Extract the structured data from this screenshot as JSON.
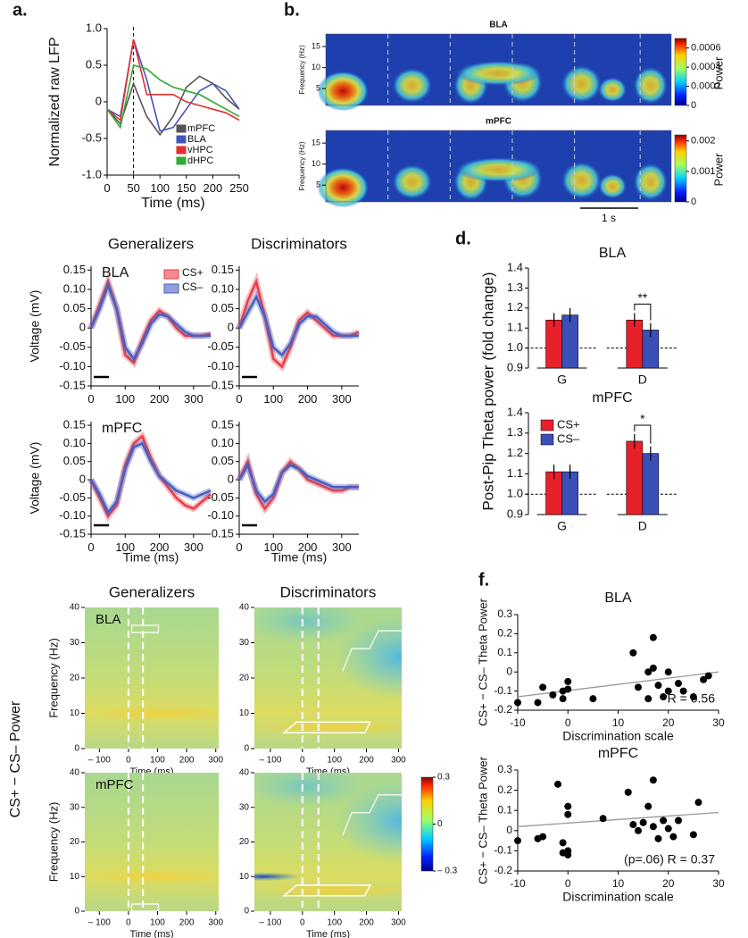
{
  "chart_data": [
    {
      "type": "line",
      "panel": "a.",
      "xlabel": "Time (ms)",
      "ylabel": "Normalized  raw LFP",
      "xlim": [
        0,
        250
      ],
      "xticks": [
        0,
        50,
        100,
        150,
        200,
        250
      ],
      "ylim": [
        -1,
        1
      ],
      "yticks": [
        {
          "value": -1,
          "label": "-1.0"
        },
        -0.5,
        0,
        0.5,
        {
          "value": 1,
          "label": "1.0"
        }
      ],
      "vline": 50,
      "legend": "lower right",
      "x": [
        0,
        25,
        50,
        75,
        100,
        125,
        150,
        175,
        200,
        225,
        250
      ],
      "series": [
        {
          "name": "mPFC",
          "color": "#555555",
          "values": [
            -0.1,
            -0.3,
            0.25,
            -0.2,
            -0.45,
            -0.2,
            0.2,
            0.35,
            0.25,
            0.05,
            -0.1
          ]
        },
        {
          "name": "BLA",
          "color": "#4455bb",
          "values": [
            -0.1,
            -0.2,
            0.85,
            0.3,
            -0.4,
            -0.35,
            -0.1,
            0.15,
            0.25,
            0.15,
            -0.1
          ]
        },
        {
          "name": "vHPC",
          "color": "#e03030",
          "values": [
            -0.1,
            -0.25,
            0.85,
            0.1,
            0.1,
            0.1,
            0,
            -0.05,
            -0.1,
            -0.15,
            -0.25
          ]
        },
        {
          "name": "dHPC",
          "color": "#33aa33",
          "values": [
            -0.1,
            -0.35,
            0.5,
            0.45,
            0.3,
            0.2,
            0.15,
            0.1,
            0,
            -0.1,
            -0.2
          ]
        }
      ]
    },
    {
      "type": "spectrogram",
      "panel": "b.",
      "title": "BLA",
      "ylabel": "Frequency (Hz)",
      "ylim": [
        1,
        18
      ],
      "yticks": [
        5,
        10,
        15
      ],
      "clim": [
        0,
        0.0007
      ],
      "cticks": [
        0,
        0.0002,
        0.0004,
        0.0006
      ],
      "colorbar_label": "Power"
    },
    {
      "type": "spectrogram",
      "title": "mPFC",
      "ylabel": "Frequency (Hz)",
      "ylim": [
        1,
        18
      ],
      "yticks": [
        5,
        10,
        15
      ],
      "clim": [
        0,
        0.0022
      ],
      "cticks": [
        0,
        0.001,
        0.002
      ],
      "colorbar_label": "Power",
      "scalebar_label": "1 s"
    },
    {
      "type": "line",
      "title": "Generalizers",
      "label": "BLA",
      "ylabel": "Voltage (mV)",
      "legend": "upper right",
      "xlim": [
        0,
        350
      ],
      "xticks": [
        0,
        100,
        200,
        300
      ],
      "ylim": [
        -0.15,
        0.16
      ],
      "yticks": [
        0.15,
        {
          "value": 0.1,
          "label": "0.10"
        },
        0.05,
        0,
        -0.05,
        {
          "value": -0.1,
          "label": "-0.10"
        },
        -0.15
      ],
      "x": [
        0,
        25,
        50,
        75,
        100,
        125,
        150,
        175,
        200,
        225,
        250,
        275,
        300,
        325,
        350
      ],
      "series": [
        {
          "name": "CS+",
          "color": "#e8404a",
          "values": [
            0,
            0.06,
            0.12,
            0.05,
            -0.07,
            -0.09,
            -0.03,
            0.02,
            0.045,
            0.03,
            0,
            -0.02,
            -0.02,
            -0.02,
            -0.015
          ]
        },
        {
          "name": "CS–",
          "color": "#4a5fc0",
          "values": [
            0,
            0.05,
            0.11,
            0.05,
            -0.05,
            -0.08,
            -0.04,
            0.01,
            0.035,
            0.03,
            0.01,
            -0.01,
            -0.02,
            -0.02,
            -0.02
          ]
        }
      ]
    },
    {
      "type": "line",
      "title": "Discriminators",
      "xlim": [
        0,
        350
      ],
      "xticks": [
        0,
        100,
        200,
        300
      ],
      "ylim": [
        -0.15,
        0.16
      ],
      "yticks": [
        0.15,
        {
          "value": 0.1,
          "label": "0.10"
        },
        0.05,
        0,
        -0.05,
        {
          "value": -0.1,
          "label": "-0.10"
        },
        -0.15
      ],
      "x": [
        0,
        25,
        50,
        75,
        100,
        125,
        150,
        175,
        200,
        225,
        250,
        275,
        300,
        325,
        350
      ],
      "series": [
        {
          "color": "#e8404a",
          "values": [
            0,
            0.07,
            0.12,
            0.03,
            -0.08,
            -0.1,
            -0.05,
            0.02,
            0.04,
            0.02,
            0,
            -0.02,
            -0.02,
            -0.02,
            -0.01
          ]
        },
        {
          "color": "#4a5fc0",
          "values": [
            0,
            0.04,
            0.08,
            0.03,
            -0.05,
            -0.07,
            -0.04,
            0.01,
            0.03,
            0.03,
            0.01,
            -0.01,
            -0.02,
            -0.02,
            -0.02
          ]
        }
      ]
    },
    {
      "type": "line",
      "label": "mPFC",
      "ylabel": "Voltage (mV)",
      "xlabel": "Time  (ms)",
      "xlim": [
        0,
        350
      ],
      "xticks": [
        0,
        100,
        200,
        300
      ],
      "ylim": [
        -0.15,
        0.16
      ],
      "yticks": [
        0.15,
        {
          "value": 0.1,
          "label": "0.10"
        },
        0.05,
        0,
        -0.05,
        {
          "value": -0.1,
          "label": "-0.10"
        },
        -0.15
      ],
      "x": [
        0,
        25,
        50,
        75,
        100,
        125,
        150,
        175,
        200,
        225,
        250,
        275,
        300,
        325,
        350
      ],
      "series": [
        {
          "color": "#e8404a",
          "values": [
            0,
            -0.05,
            -0.1,
            -0.07,
            0.04,
            0.1,
            0.12,
            0.06,
            0.01,
            -0.02,
            -0.05,
            -0.07,
            -0.08,
            -0.06,
            -0.04
          ]
        },
        {
          "color": "#4a5fc0",
          "values": [
            0,
            -0.04,
            -0.09,
            -0.06,
            0.03,
            0.09,
            0.1,
            0.05,
            0.01,
            -0.01,
            -0.03,
            -0.04,
            -0.05,
            -0.04,
            -0.03
          ]
        }
      ]
    },
    {
      "type": "line",
      "xlabel": "Time  (ms)",
      "xlim": [
        0,
        350
      ],
      "xticks": [
        0,
        100,
        200,
        300
      ],
      "ylim": [
        -0.15,
        0.16
      ],
      "yticks": [
        0.15,
        {
          "value": 0.1,
          "label": "0.10"
        },
        0.05,
        0,
        -0.05,
        {
          "value": -0.1,
          "label": "-0.10"
        },
        -0.15
      ],
      "x": [
        0,
        25,
        50,
        75,
        100,
        125,
        150,
        175,
        200,
        225,
        250,
        275,
        300,
        325,
        350
      ],
      "series": [
        {
          "color": "#e8404a",
          "values": [
            0,
            0.05,
            -0.04,
            -0.08,
            -0.05,
            0.02,
            0.05,
            0.03,
            0,
            -0.01,
            -0.02,
            -0.03,
            -0.03,
            -0.02,
            -0.02
          ]
        },
        {
          "color": "#4a5fc0",
          "values": [
            0,
            0.04,
            -0.03,
            -0.06,
            -0.04,
            0.02,
            0.04,
            0.03,
            0.01,
            0,
            -0.01,
            -0.02,
            -0.02,
            -0.02,
            -0.02
          ]
        }
      ]
    },
    {
      "type": "bar",
      "panel": "d.",
      "title": "BLA",
      "ylabel": "Post-Pip Theta power (fold change)",
      "categories": [
        "G",
        "D"
      ],
      "ylim": [
        0.9,
        1.4
      ],
      "yticks": [
        0.9,
        {
          "value": 1,
          "label": "1.0"
        },
        1.1,
        1.2,
        1.3,
        1.4
      ],
      "hline": 1,
      "annotation": "**",
      "series": [
        {
          "color": "#e8202a",
          "values": [
            1.14,
            1.14
          ],
          "errors": [
            0.035,
            0.035
          ]
        },
        {
          "color": "#3a4fb8",
          "values": [
            1.165,
            1.09
          ],
          "errors": [
            0.035,
            0.035
          ]
        }
      ]
    },
    {
      "type": "bar",
      "title": "mPFC",
      "legend": "upper left",
      "categories": [
        "G",
        "D"
      ],
      "ylim": [
        0.9,
        1.4
      ],
      "yticks": [
        0.9,
        {
          "value": 1,
          "label": "1.0"
        },
        1.1,
        1.2,
        1.3,
        1.4
      ],
      "hline": 1,
      "annotation": "*",
      "series": [
        {
          "name": "CS+",
          "color": "#e8202a",
          "values": [
            1.11,
            1.26
          ],
          "errors": [
            0.035,
            0.035
          ]
        },
        {
          "name": "CS–",
          "color": "#3a4fb8",
          "values": [
            1.11,
            1.2
          ],
          "errors": [
            0.035,
            0.035
          ]
        }
      ]
    },
    {
      "type": "heatmap",
      "title": "Generalizers",
      "label": "BLA",
      "ylabel": "Frequency (Hz)",
      "xlabel": "Time (ms)",
      "group_ylabel": "CS+  −  CS–  Power",
      "xlim": [
        -150,
        310
      ],
      "xticks": [
        {
          "value": -100,
          "label": "– 100"
        },
        0,
        100,
        200,
        300
      ],
      "ylim": [
        0,
        40
      ],
      "yticks": [
        0,
        10,
        20,
        30,
        40
      ],
      "event_lines": [
        0,
        50
      ]
    },
    {
      "type": "heatmap",
      "title": "Discriminators",
      "xlabel": "Time (ms)",
      "xlim": [
        -150,
        310
      ],
      "xticks": [
        {
          "value": -100,
          "label": "– 100"
        },
        0,
        100,
        200,
        300
      ],
      "ylim": [
        0,
        40
      ],
      "yticks": [
        0,
        10,
        20,
        30,
        40
      ],
      "event_lines": [
        0,
        50
      ]
    },
    {
      "type": "heatmap",
      "label": "mPFC",
      "ylabel": "Frequency (Hz)",
      "xlabel": "Time (ms)",
      "xlim": [
        -150,
        310
      ],
      "xticks": [
        {
          "value": -100,
          "label": "– 100"
        },
        0,
        100,
        200,
        300
      ],
      "ylim": [
        0,
        40
      ],
      "yticks": [
        0,
        10,
        20,
        30,
        40
      ],
      "event_lines": [
        0,
        50
      ]
    },
    {
      "type": "heatmap",
      "xlabel": "Time (ms)",
      "xlim": [
        -150,
        310
      ],
      "xticks": [
        {
          "value": -100,
          "label": "– 100"
        },
        0,
        100,
        200,
        300
      ],
      "ylim": [
        0,
        40
      ],
      "yticks": [
        0,
        10,
        20,
        30,
        40
      ],
      "event_lines": [
        0,
        50
      ],
      "clim": [
        -0.3,
        0.3
      ],
      "cticks": [
        {
          "value": -0.3,
          "label": "– 0.3"
        },
        0,
        0.3
      ]
    },
    {
      "type": "scatter",
      "panel": "f.",
      "title": "BLA",
      "ylabel": "CS+ − CS– Theta Power",
      "xlabel": "Discrimination scale",
      "annotation": "*R = 0.56",
      "xlim": [
        -10,
        30
      ],
      "xticks": [
        -10,
        0,
        10,
        20,
        30
      ],
      "ylim": [
        -0.2,
        0.3
      ],
      "yticks": [
        -0.2,
        -0.1,
        0,
        0.1,
        0.2,
        0.3
      ],
      "x": [
        -10,
        -6,
        -5,
        -3,
        -1,
        -1,
        0,
        0,
        5,
        13,
        14,
        16,
        16,
        17,
        17,
        18,
        19,
        20,
        20,
        22,
        23,
        25,
        27,
        28
      ],
      "values": [
        -0.16,
        -0.16,
        -0.08,
        -0.12,
        -0.1,
        -0.14,
        -0.05,
        -0.09,
        -0.14,
        0.1,
        -0.08,
        0,
        -0.14,
        0.18,
        0.02,
        -0.07,
        -0.13,
        0,
        -0.1,
        -0.06,
        -0.1,
        -0.13,
        -0.04,
        -0.02
      ],
      "fit": {
        "x": [
          -10,
          30
        ],
        "y": [
          -0.13,
          0
        ]
      }
    },
    {
      "type": "scatter",
      "title": "mPFC",
      "ylabel": "CS+ − CS– Theta Power",
      "xlabel": "Discrimination scale",
      "annotation": "(p=.06) R = 0.37",
      "xlim": [
        -10,
        30
      ],
      "xticks": [
        -10,
        0,
        10,
        20,
        30
      ],
      "ylim": [
        -0.2,
        0.3
      ],
      "yticks": [
        -0.2,
        -0.1,
        0,
        0.1,
        0.2,
        0.3
      ],
      "x": [
        -10,
        -6,
        -5,
        -2,
        -1,
        -1,
        0,
        0,
        0,
        0,
        7,
        12,
        13,
        14,
        15,
        16,
        17,
        17,
        18,
        19,
        20,
        21,
        22,
        25,
        26
      ],
      "values": [
        -0.05,
        -0.04,
        -0.03,
        0.23,
        -0.06,
        -0.11,
        0.12,
        0.08,
        -0.1,
        -0.12,
        0.06,
        0.19,
        0.03,
        0,
        0.04,
        0.12,
        0.25,
        0.02,
        -0.04,
        0.05,
        0.01,
        -0.03,
        0.05,
        -0.02,
        0.14
      ],
      "fit": {
        "x": [
          -10,
          30
        ],
        "y": [
          0.02,
          0.09
        ]
      }
    }
  ]
}
